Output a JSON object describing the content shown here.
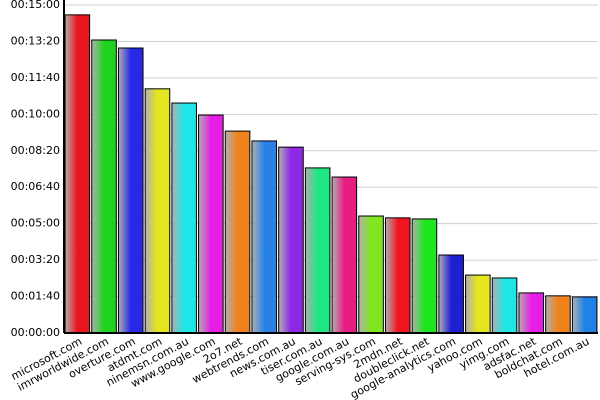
{
  "chart_data": {
    "type": "bar",
    "categories": [
      "microsoft.com",
      "imrworldwide.com",
      "overture.com",
      "atdmt.com",
      "ninemsn.com.au",
      "www.google.com",
      "2o7.net",
      "webtrends.com",
      "news.com.au",
      "tiser.com.au",
      "google.com.au",
      "serving-sys.com",
      "2mdn.net",
      "doubleclick.net",
      "google-analytics.com",
      "yahoo.com",
      "yimg.com",
      "adsfac.net",
      "boldchat.com",
      "hotel.com.au"
    ],
    "values": [
      873,
      804,
      782,
      670,
      631,
      598,
      554,
      527,
      510,
      453,
      428,
      321,
      316,
      313,
      214,
      159,
      151,
      110,
      102,
      99
    ],
    "colors": [
      "#e8141e",
      "#1ed21e",
      "#2828e6",
      "#e6e61e",
      "#1ee6e6",
      "#e61ee6",
      "#f0821e",
      "#2882e6",
      "#8c28e6",
      "#1ee682",
      "#e61e82",
      "#82e61e",
      "#f0141e",
      "#1ee61e",
      "#1e1ed2",
      "#e6e61e",
      "#1ee6e6",
      "#e61ee6",
      "#f0821e",
      "#1e82e6"
    ],
    "ylim": [
      0,
      900
    ],
    "yticks": [
      {
        "value": 0,
        "label": "00:00:00"
      },
      {
        "value": 100,
        "label": "00:01:40"
      },
      {
        "value": 200,
        "label": "00:03:20"
      },
      {
        "value": 300,
        "label": "00:05:00"
      },
      {
        "value": 400,
        "label": "00:06:40"
      },
      {
        "value": 500,
        "label": "00:08:20"
      },
      {
        "value": 600,
        "label": "00:10:00"
      },
      {
        "value": 700,
        "label": "00:11:40"
      },
      {
        "value": 800,
        "label": "00:13:20"
      },
      {
        "value": 900,
        "label": "00:15:00"
      }
    ],
    "grid": true
  }
}
